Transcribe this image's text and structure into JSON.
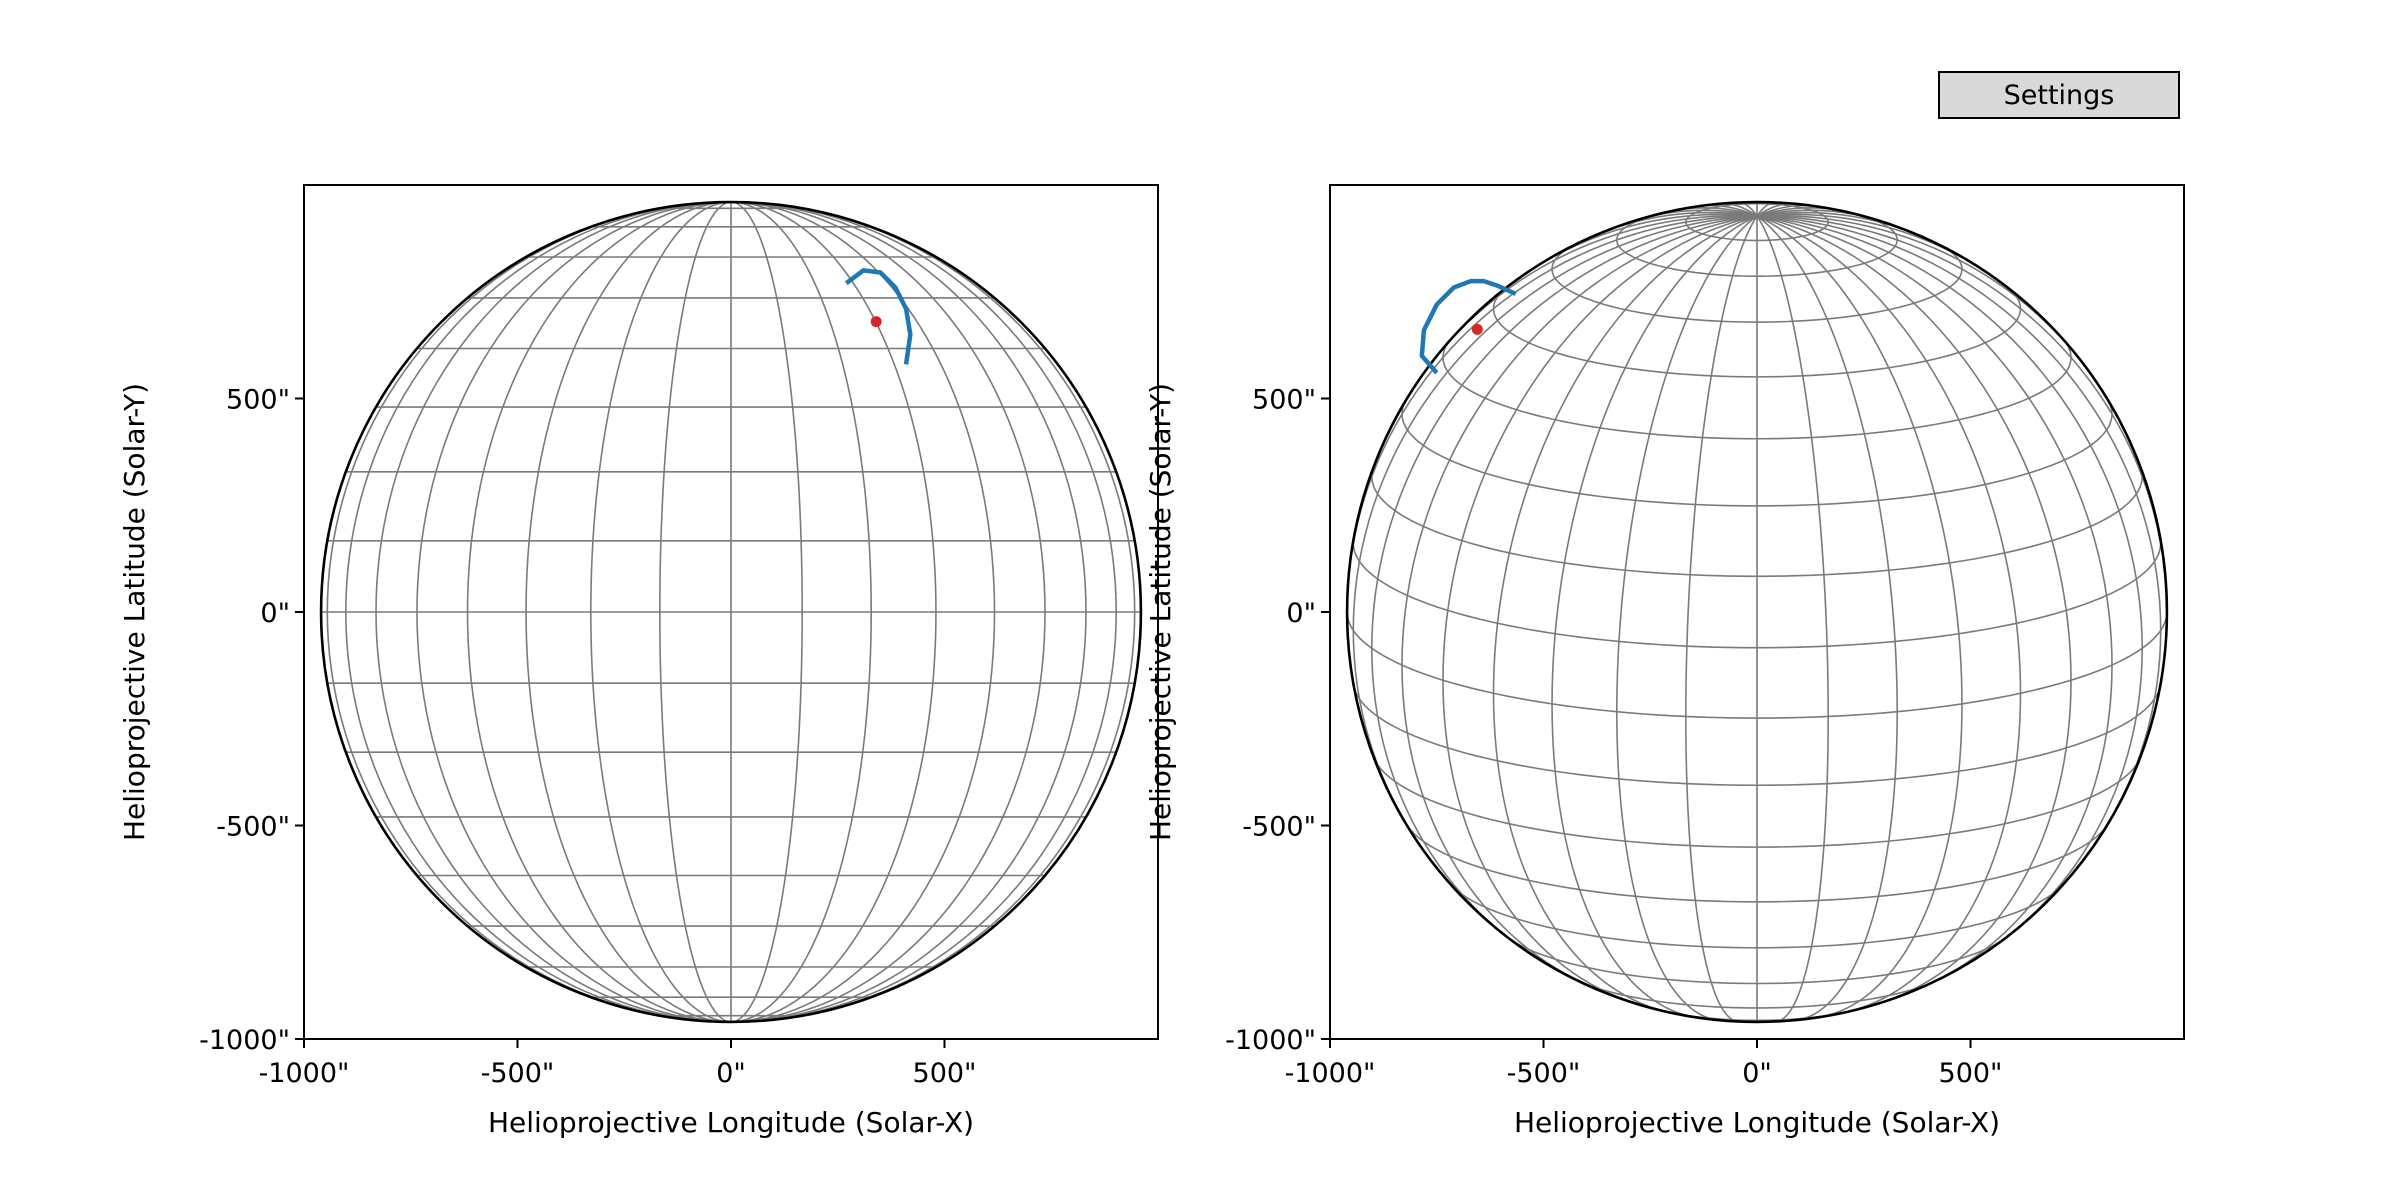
{
  "settings_button": {
    "label": "Settings"
  },
  "chart_data": [
    {
      "type": "scatter",
      "title": "",
      "xlabel": "Helioprojective Longitude (Solar-X)",
      "ylabel": "Helioprojective Latitude (Solar-Y)",
      "xlim": [
        -1000,
        1000
      ],
      "ylim": [
        -1000,
        1000
      ],
      "xticks": [
        "-1000\"",
        "-500\"",
        "0\"",
        "500\""
      ],
      "yticks": [
        "-1000\"",
        "-500\"",
        "0\"",
        "500\""
      ],
      "grid": "heliographic lon/lat",
      "observer_tilt_deg": 0,
      "marker_colors": {
        "loop": "#1f77b4",
        "point": "#d62728"
      },
      "series": [
        {
          "type": "line",
          "x": [
            270,
            310,
            350,
            385,
            410,
            420,
            410
          ],
          "y": [
            770,
            800,
            795,
            760,
            710,
            650,
            580
          ]
        },
        {
          "type": "point",
          "x": [
            340
          ],
          "y": [
            680
          ]
        }
      ]
    },
    {
      "type": "scatter",
      "title": "",
      "xlabel": "Helioprojective Longitude (Solar-X)",
      "ylabel": "Helioprojective Latitude (Solar-Y)",
      "xlim": [
        -1000,
        1000
      ],
      "ylim": [
        -1000,
        1000
      ],
      "xticks": [
        "-1000\"",
        "-500\"",
        "0\"",
        "500\""
      ],
      "yticks": [
        "-1000\"",
        "-500\"",
        "0\"",
        "500\""
      ],
      "grid": "heliographic lon/lat",
      "observer_tilt_deg": 15,
      "marker_colors": {
        "loop": "#1f77b4",
        "point": "#d62728"
      },
      "series": [
        {
          "type": "line",
          "x": [
            -750,
            -785,
            -780,
            -750,
            -710,
            -670,
            -640,
            -610,
            -565
          ],
          "y": [
            560,
            600,
            660,
            720,
            760,
            775,
            775,
            765,
            745
          ]
        },
        {
          "type": "point",
          "x": [
            -655
          ],
          "y": [
            662
          ]
        }
      ]
    }
  ]
}
